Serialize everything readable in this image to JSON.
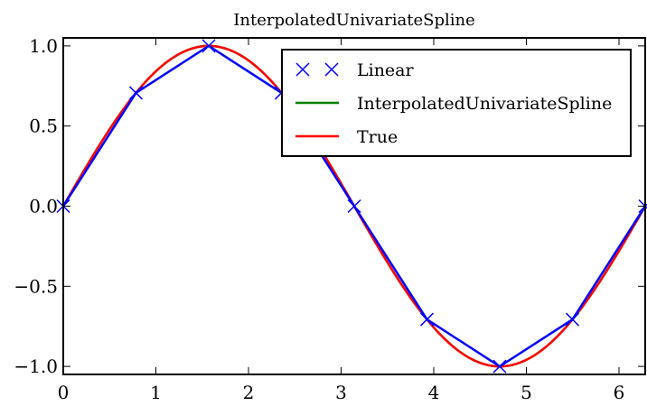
{
  "chart_data": {
    "type": "line",
    "title": "InterpolatedUnivariateSpline",
    "xlabel": "",
    "ylabel": "",
    "xlim": [
      0,
      6.283
    ],
    "ylim": [
      -1.05,
      1.05
    ],
    "x_ticks": [
      "0",
      "1",
      "2",
      "3",
      "4",
      "5",
      "6"
    ],
    "x_tick_values": [
      0,
      1,
      2,
      3,
      4,
      5,
      6
    ],
    "y_ticks": [
      "−1.0",
      "−0.5",
      "0.0",
      "0.5",
      "1.0"
    ],
    "y_tick_values": [
      -1.0,
      -0.5,
      0.0,
      0.5,
      1.0
    ],
    "legend_position": "top-right",
    "grid": false,
    "series": [
      {
        "name": "Linear",
        "color": "#0000ff",
        "marker": "x",
        "x": [
          0,
          0.785,
          1.571,
          2.356,
          3.142,
          3.927,
          4.712,
          5.498,
          6.283
        ],
        "y": [
          0,
          0.707,
          1.0,
          0.707,
          0,
          -0.707,
          -1.0,
          -0.707,
          0
        ]
      },
      {
        "name": "InterpolatedUnivariateSpline",
        "color": "#008000",
        "function": "sin",
        "x_range": [
          0,
          6.283
        ]
      },
      {
        "name": "True",
        "color": "#ff0000",
        "function": "sin",
        "x_range": [
          0,
          6.283
        ]
      }
    ]
  }
}
